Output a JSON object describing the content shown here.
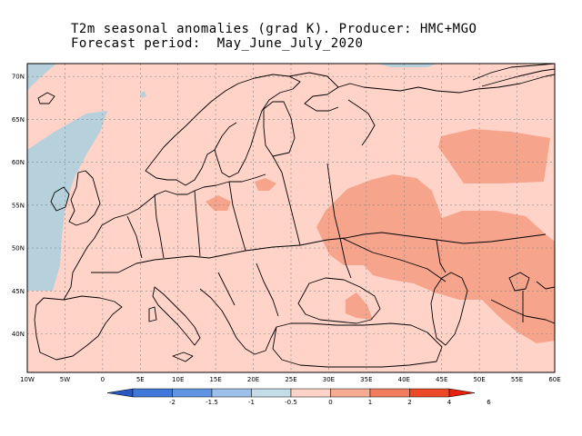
{
  "title": {
    "line1": "T2m seasonal anomalies (grad K). Producer: HMC+MGO",
    "line2": "Forecast period:  May_June_July_2020"
  },
  "axes": {
    "lat_labels": [
      "70N",
      "65N",
      "60N",
      "55N",
      "50N",
      "45N",
      "40N"
    ],
    "lat_values": [
      70,
      65,
      60,
      55,
      50,
      45,
      40
    ],
    "lon_labels": [
      "10W",
      "5W",
      "0",
      "5E",
      "10E",
      "15E",
      "20E",
      "25E",
      "30E",
      "35E",
      "40E",
      "45E",
      "50E",
      "55E",
      "60E"
    ],
    "lon_values": [
      -10,
      -5,
      0,
      5,
      10,
      15,
      20,
      25,
      30,
      35,
      40,
      45,
      50,
      55,
      60
    ],
    "lon_range": [
      -10,
      60
    ],
    "lat_range": [
      35.5,
      71.5
    ]
  },
  "colorbar": {
    "labels": [
      "-2",
      "-1.5",
      "-1",
      "-0.5",
      "0",
      "1",
      "2",
      "4",
      "6"
    ],
    "colors": [
      "#2b57c0",
      "#3f78d8",
      "#5f95e0",
      "#9dbfe8",
      "#c4dbe8",
      "#ffd3c8",
      "#f7ab92",
      "#f27d5c",
      "#ec4a26",
      "#e42010"
    ]
  },
  "fill_colors": {
    "background": "#ffd3c8",
    "cold": "#b6d0dc",
    "warm": "#f6a48c"
  }
}
